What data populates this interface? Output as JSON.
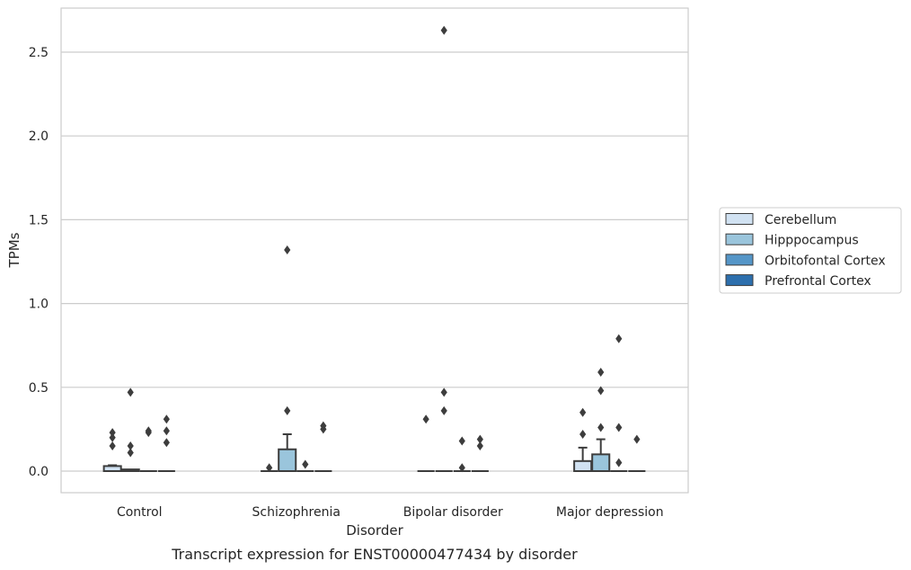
{
  "chart_data": {
    "type": "box",
    "xlabel": "Disorder",
    "ylabel": "TPMs",
    "caption": "Transcript expression for ENST00000477434 by disorder",
    "categories": [
      "Control",
      "Schizophrenia",
      "Bipolar disorder",
      "Major depression"
    ],
    "ylim": [
      -0.13,
      2.77
    ],
    "yticks": [
      0.0,
      0.5,
      1.0,
      1.5,
      2.0,
      2.5
    ],
    "ytick_labels": [
      "0.0",
      "0.5",
      "1.0",
      "1.5",
      "2.0",
      "2.5"
    ],
    "grid": "horizontal",
    "legend_position": "center-right",
    "series": [
      {
        "name": "Cerebellum",
        "color": "#d1e2f2",
        "boxes": [
          {
            "q1": 0.0,
            "median": 0.0,
            "q3": 0.03,
            "whisker_low": 0.0,
            "whisker_high": 0.035,
            "outliers": [
              0.15,
              0.2,
              0.23
            ]
          },
          {
            "q1": 0.0,
            "median": 0.0,
            "q3": 0.0,
            "whisker_low": 0.0,
            "whisker_high": 0.0,
            "outliers": [
              0.02
            ]
          },
          {
            "q1": 0.0,
            "median": 0.0,
            "q3": 0.0,
            "whisker_low": 0.0,
            "whisker_high": 0.0,
            "outliers": [
              0.31
            ]
          },
          {
            "q1": 0.0,
            "median": 0.0,
            "q3": 0.06,
            "whisker_low": 0.0,
            "whisker_high": 0.14,
            "outliers": [
              0.22,
              0.35
            ]
          }
        ]
      },
      {
        "name": "Hipppocampus",
        "color": "#9ac5dc",
        "boxes": [
          {
            "q1": 0.0,
            "median": 0.0,
            "q3": 0.01,
            "whisker_low": 0.0,
            "whisker_high": 0.01,
            "outliers": [
              0.11,
              0.15,
              0.47
            ]
          },
          {
            "q1": 0.0,
            "median": 0.0,
            "q3": 0.13,
            "whisker_low": 0.0,
            "whisker_high": 0.22,
            "outliers": [
              0.36,
              1.32
            ]
          },
          {
            "q1": 0.0,
            "median": 0.0,
            "q3": 0.0,
            "whisker_low": 0.0,
            "whisker_high": 0.0,
            "outliers": [
              0.36,
              0.47,
              2.63
            ]
          },
          {
            "q1": 0.0,
            "median": 0.0,
            "q3": 0.1,
            "whisker_low": 0.0,
            "whisker_high": 0.19,
            "outliers": [
              0.26,
              0.48,
              0.59
            ]
          }
        ]
      },
      {
        "name": "Orbitofontal Cortex",
        "color": "#5596c8",
        "boxes": [
          {
            "q1": 0.0,
            "median": 0.0,
            "q3": 0.0,
            "whisker_low": 0.0,
            "whisker_high": 0.0,
            "outliers": [
              0.23,
              0.24
            ]
          },
          {
            "q1": 0.0,
            "median": 0.0,
            "q3": 0.0,
            "whisker_low": 0.0,
            "whisker_high": 0.0,
            "outliers": [
              0.04
            ]
          },
          {
            "q1": 0.0,
            "median": 0.0,
            "q3": 0.0,
            "whisker_low": 0.0,
            "whisker_high": 0.0,
            "outliers": [
              0.02,
              0.18
            ]
          },
          {
            "q1": 0.0,
            "median": 0.0,
            "q3": 0.0,
            "whisker_low": 0.0,
            "whisker_high": 0.0,
            "outliers": [
              0.05,
              0.26,
              0.79
            ]
          }
        ]
      },
      {
        "name": "Prefrontal Cortex",
        "color": "#2d6fad",
        "boxes": [
          {
            "q1": 0.0,
            "median": 0.0,
            "q3": 0.0,
            "whisker_low": 0.0,
            "whisker_high": 0.0,
            "outliers": [
              0.17,
              0.24,
              0.31
            ]
          },
          {
            "q1": 0.0,
            "median": 0.0,
            "q3": 0.0,
            "whisker_low": 0.0,
            "whisker_high": 0.0,
            "outliers": [
              0.25,
              0.27
            ]
          },
          {
            "q1": 0.0,
            "median": 0.0,
            "q3": 0.0,
            "whisker_low": 0.0,
            "whisker_high": 0.0,
            "outliers": [
              0.15,
              0.19
            ]
          },
          {
            "q1": 0.0,
            "median": 0.0,
            "q3": 0.0,
            "whisker_low": 0.0,
            "whisker_high": 0.0,
            "outliers": [
              0.19
            ]
          }
        ]
      }
    ]
  }
}
